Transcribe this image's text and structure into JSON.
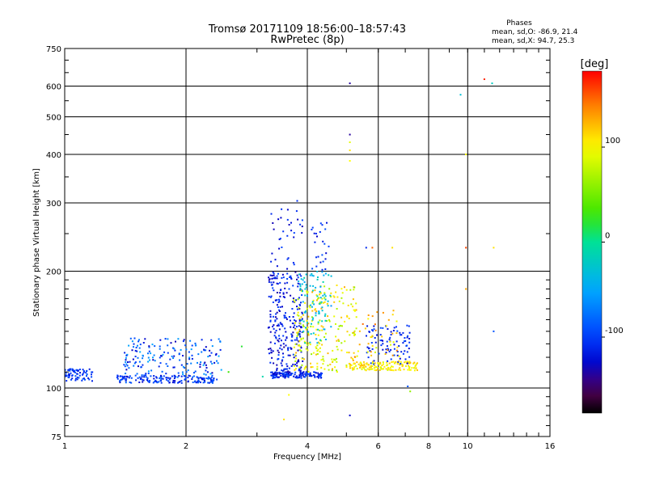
{
  "chart_data": {
    "type": "scatter",
    "title": "Tromsø 20171109 18:56:00–18:57:43",
    "subtitle": "RwPretec (8p)",
    "xlabel": "Frequency [MHz]",
    "ylabel": "Stationary phase Virtual Height [km]",
    "x_scale": "log",
    "y_scale": "log",
    "xlim": [
      1,
      16
    ],
    "ylim": [
      75,
      750
    ],
    "x_ticks": [
      1,
      2,
      4,
      6,
      8,
      10,
      16
    ],
    "y_ticks": [
      75,
      100,
      200,
      300,
      400,
      500,
      600,
      750
    ],
    "grid": true,
    "stats": {
      "heading": "Phases",
      "line_o": "mean, sd,O: -86.9, 21.4",
      "line_x": "mean, sd,X:  94.7, 25.3"
    },
    "colorbar": {
      "label": "[deg]",
      "range": [
        -180,
        180
      ],
      "ticks": [
        100,
        0,
        -100
      ],
      "colors": [
        "#ff0000",
        "#ff8800",
        "#ffff00",
        "#00e000",
        "#00ffff",
        "#0060ff",
        "#0000cc",
        "#5a005a",
        "#000000"
      ]
    },
    "clusters": [
      {
        "f_min": 1.0,
        "f_max": 1.18,
        "h_min": 104,
        "h_max": 112,
        "n": 70,
        "phase_min": -125,
        "phase_max": -85
      },
      {
        "f_min": 1.35,
        "f_max": 2.4,
        "h_min": 103,
        "h_max": 108,
        "n": 160,
        "phase_min": -130,
        "phase_max": -80
      },
      {
        "f_min": 1.4,
        "f_max": 2.45,
        "h_min": 108,
        "h_max": 135,
        "n": 170,
        "phase_min": -135,
        "phase_max": -50
      },
      {
        "f_min": 3.25,
        "f_max": 4.35,
        "h_min": 106,
        "h_max": 110,
        "n": 140,
        "phase_min": -130,
        "phase_max": -90
      },
      {
        "f_min": 3.2,
        "f_max": 3.9,
        "h_min": 110,
        "h_max": 200,
        "n": 260,
        "phase_min": -140,
        "phase_max": -95
      },
      {
        "f_min": 3.2,
        "f_max": 3.9,
        "h_min": 200,
        "h_max": 305,
        "n": 35,
        "phase_min": -135,
        "phase_max": -95
      },
      {
        "f_min": 3.7,
        "f_max": 5.3,
        "h_min": 110,
        "h_max": 185,
        "n": 230,
        "phase_min": 60,
        "phase_max": 130
      },
      {
        "f_min": 3.8,
        "f_max": 4.6,
        "h_min": 130,
        "h_max": 200,
        "n": 90,
        "phase_min": -60,
        "phase_max": -10
      },
      {
        "f_min": 4.1,
        "f_max": 4.6,
        "h_min": 200,
        "h_max": 270,
        "n": 25,
        "phase_min": -130,
        "phase_max": -90
      },
      {
        "f_min": 5.0,
        "f_max": 7.5,
        "h_min": 111,
        "h_max": 117,
        "n": 140,
        "phase_min": 85,
        "phase_max": 125
      },
      {
        "f_min": 5.6,
        "f_max": 7.2,
        "h_min": 115,
        "h_max": 145,
        "n": 90,
        "phase_min": -130,
        "phase_max": -90
      },
      {
        "f_min": 5.2,
        "f_max": 6.8,
        "h_min": 115,
        "h_max": 160,
        "n": 55,
        "phase_min": 80,
        "phase_max": 150
      }
    ],
    "points": [
      {
        "f": 5.1,
        "h": 610,
        "p": -140
      },
      {
        "f": 5.1,
        "h": 450,
        "p": -140
      },
      {
        "f": 5.1,
        "h": 430,
        "p": 90
      },
      {
        "f": 5.1,
        "h": 410,
        "p": 110
      },
      {
        "f": 5.1,
        "h": 385,
        "p": 100
      },
      {
        "f": 5.1,
        "h": 85,
        "p": -130
      },
      {
        "f": 9.6,
        "h": 570,
        "p": -30
      },
      {
        "f": 11.0,
        "h": 625,
        "p": 170
      },
      {
        "f": 11.5,
        "h": 610,
        "p": -20
      },
      {
        "f": 9.9,
        "h": 400,
        "p": 100
      },
      {
        "f": 9.9,
        "h": 230,
        "p": 160
      },
      {
        "f": 11.6,
        "h": 230,
        "p": 110
      },
      {
        "f": 9.9,
        "h": 180,
        "p": 130
      },
      {
        "f": 11.6,
        "h": 140,
        "p": -90
      },
      {
        "f": 2.75,
        "h": 128,
        "p": 20
      },
      {
        "f": 2.55,
        "h": 110,
        "p": 30
      },
      {
        "f": 3.1,
        "h": 107,
        "p": -10
      },
      {
        "f": 3.6,
        "h": 96,
        "p": 100
      },
      {
        "f": 3.5,
        "h": 83,
        "p": 110
      },
      {
        "f": 7.2,
        "h": 98,
        "p": 60
      },
      {
        "f": 7.1,
        "h": 101,
        "p": -90
      },
      {
        "f": 5.6,
        "h": 230,
        "p": -110
      },
      {
        "f": 5.8,
        "h": 230,
        "p": 150
      },
      {
        "f": 6.5,
        "h": 230,
        "p": 110
      }
    ]
  }
}
